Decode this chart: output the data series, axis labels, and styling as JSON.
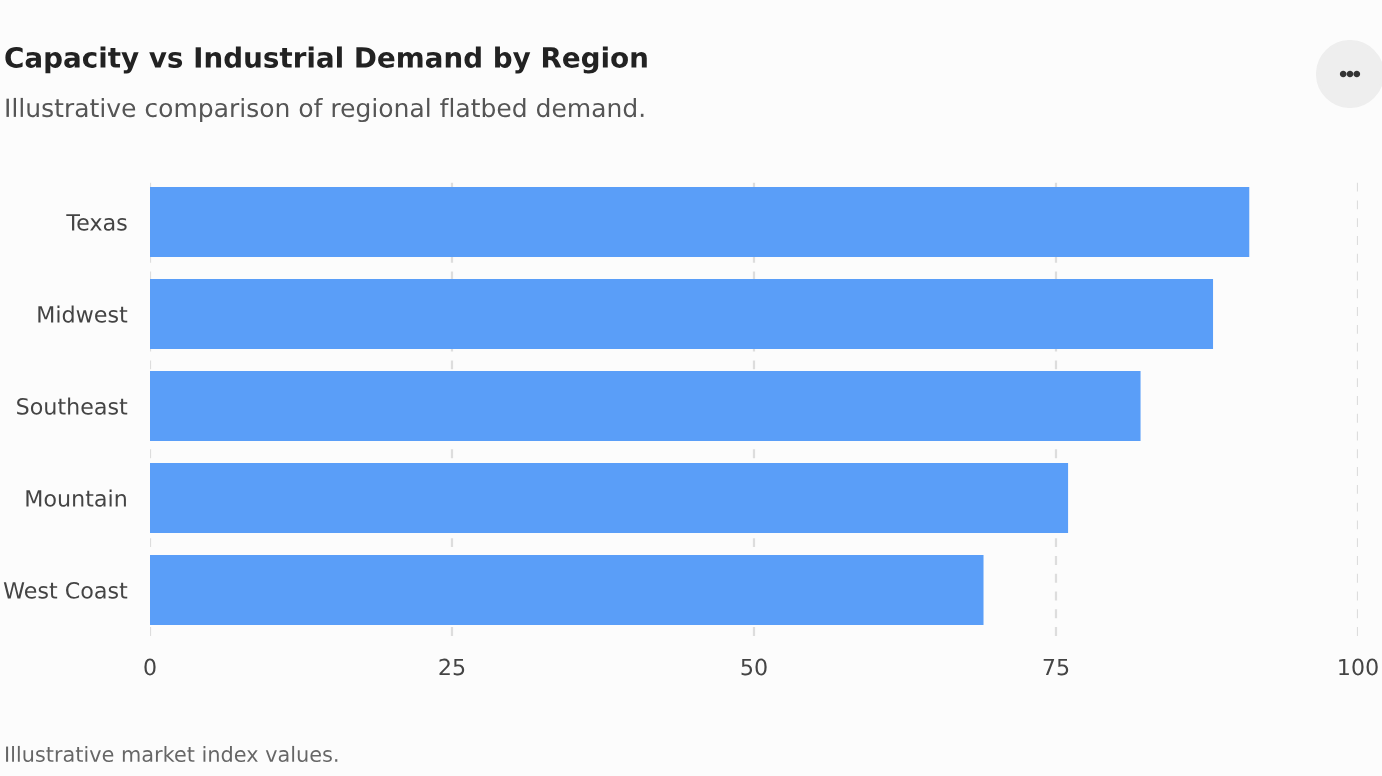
{
  "chart_data": {
    "type": "bar",
    "orientation": "horizontal",
    "title": "Capacity vs Industrial Demand by Region",
    "subtitle": "Illustrative comparison of regional flatbed demand.",
    "annotations": [
      "Illustrative market index values."
    ],
    "categories": [
      "Texas",
      "Midwest",
      "Southeast",
      "Mountain",
      "West Coast"
    ],
    "values": [
      91,
      88,
      82,
      76,
      69
    ],
    "color": "#5a9ef8",
    "xlim": [
      0,
      100
    ],
    "xticks": [
      0,
      25,
      50,
      75,
      100
    ],
    "grid": "x",
    "legend": false
  }
}
